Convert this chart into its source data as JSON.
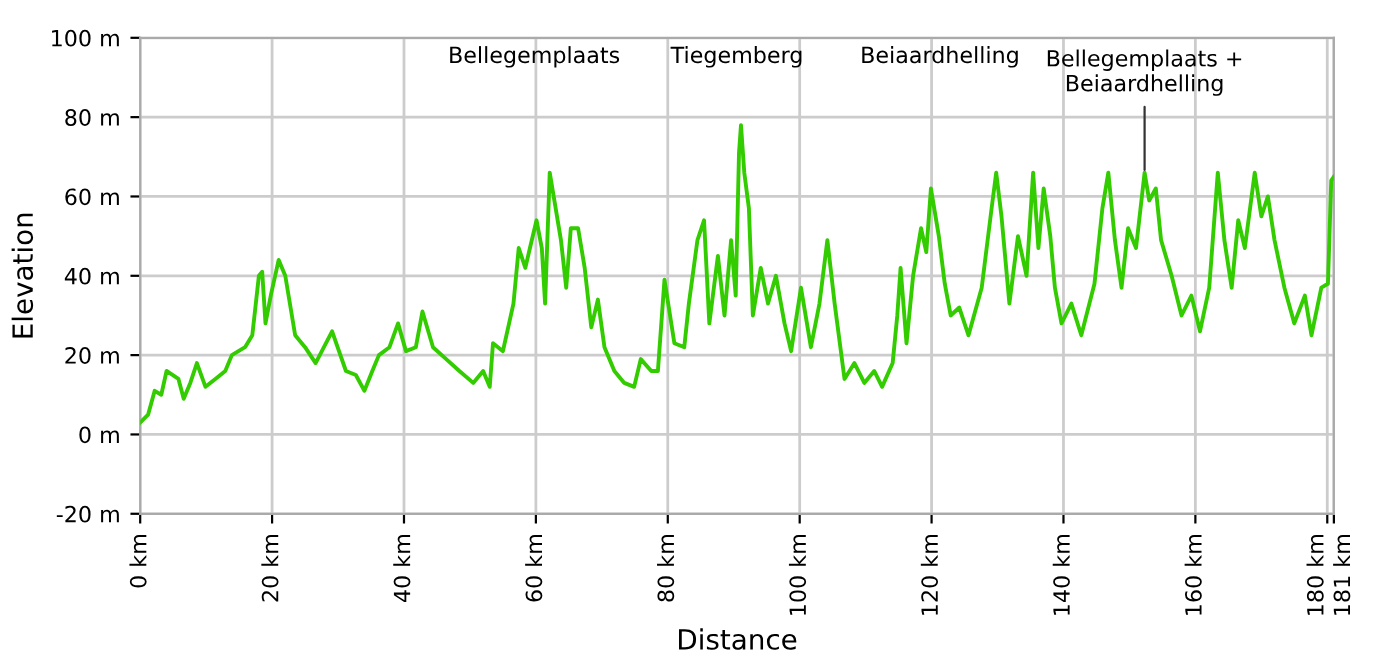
{
  "chart_data": {
    "type": "line",
    "xlabel": "Distance",
    "ylabel": "Elevation",
    "xlim": [
      0,
      181
    ],
    "ylim": [
      -20,
      100
    ],
    "xticks": [
      {
        "value": 0,
        "label": "0 km"
      },
      {
        "value": 20,
        "label": "20 km"
      },
      {
        "value": 40,
        "label": "40 km"
      },
      {
        "value": 60,
        "label": "60 km"
      },
      {
        "value": 80,
        "label": "80 km"
      },
      {
        "value": 100,
        "label": "100 km"
      },
      {
        "value": 120,
        "label": "120 km"
      },
      {
        "value": 140,
        "label": "140 km"
      },
      {
        "value": 160,
        "label": "160 km"
      },
      {
        "value": 180,
        "label": "180 km"
      },
      {
        "value": 181,
        "label": "181 km"
      }
    ],
    "yticks": [
      {
        "value": -20,
        "label": "-20 m"
      },
      {
        "value": 0,
        "label": "0 m"
      },
      {
        "value": 20,
        "label": "20 m"
      },
      {
        "value": 40,
        "label": "40 m"
      },
      {
        "value": 60,
        "label": "60 m"
      },
      {
        "value": 80,
        "label": "80 m"
      },
      {
        "value": 100,
        "label": "100 m"
      }
    ],
    "grid": true,
    "marker": "none",
    "line_style": "solid",
    "annotations": [
      "Bellegemplaats",
      "Tiegemberg",
      "Beiaardhelling",
      {
        "text": "Bellegemplaats +\nBeiaardhelling",
        "x": 152.3,
        "y": 66
      }
    ],
    "series": [
      {
        "color": "#33cc00",
        "x": [
          0,
          1.2,
          2.2,
          3.2,
          4.0,
          5.8,
          6.6,
          7.6,
          8.6,
          9.9,
          11.4,
          12.9,
          13.9,
          15.9,
          17,
          18,
          18.5,
          19,
          19.8,
          21,
          22,
          23.5,
          25,
          26.6,
          29.1,
          31.2,
          32.7,
          34,
          35.2,
          36.2,
          37.8,
          39.1,
          40.3,
          41.8,
          42.8,
          44.4,
          46.4,
          48.4,
          50.5,
          52,
          53,
          53.5,
          55,
          56.6,
          57.4,
          58.4,
          59.1,
          60.1,
          60.9,
          61.4,
          62.1,
          62.8,
          63.8,
          64.6,
          65.3,
          66.4,
          67.4,
          68.4,
          69.4,
          70.4,
          71.9,
          73.4,
          74.9,
          75.9,
          77.5,
          78.5,
          79.5,
          81,
          82.5,
          83.2,
          84.5,
          85.5,
          86.3,
          87.6,
          88.6,
          89.6,
          90.3,
          90.8,
          91.1,
          91.6,
          92.3,
          92.9,
          94.1,
          95.2,
          96.4,
          97.7,
          98.7,
          100.2,
          101.7,
          103,
          104.2,
          105.3,
          106.8,
          108.3,
          109.8,
          111.3,
          112.5,
          114.1,
          114.8,
          115.3,
          116.2,
          117.2,
          118.4,
          119.2,
          119.9,
          120.4,
          121.1,
          122,
          122.9,
          124.2,
          125.6,
          127.6,
          129.1,
          129.8,
          130.6,
          131.8,
          133.1,
          134.4,
          135.4,
          136.2,
          137,
          138,
          138.7,
          139.7,
          141.2,
          142.7,
          144.7,
          145.9,
          146.8,
          147.8,
          148.8,
          149.8,
          151,
          152.3,
          153,
          154,
          154.8,
          156.4,
          157.9,
          159.4,
          160.7,
          162.1,
          163.4,
          164.4,
          165.5,
          166.5,
          167.5,
          169,
          170,
          171,
          172,
          173.5,
          175,
          176.6,
          177.6,
          179.1,
          180.1,
          180.6,
          181
        ],
        "values": [
          3,
          5,
          11,
          10,
          16,
          14,
          9,
          13,
          18,
          12,
          14,
          16,
          20,
          22,
          25,
          40,
          41,
          28,
          35,
          44,
          40,
          25,
          22,
          18,
          26,
          16,
          15,
          11,
          16,
          20,
          22,
          28,
          21,
          22,
          31,
          22,
          19,
          16,
          13,
          16,
          12,
          23,
          21,
          33,
          47,
          42,
          47,
          54,
          47,
          33,
          66,
          59,
          49,
          37,
          52,
          52,
          42,
          27,
          34,
          22,
          16,
          13,
          12,
          19,
          16,
          16,
          39,
          23,
          22,
          33,
          49,
          54,
          28,
          45,
          30,
          49,
          35,
          71,
          78,
          66,
          57,
          30,
          42,
          33,
          40,
          28,
          21,
          37,
          22,
          33,
          49,
          33,
          14,
          18,
          13,
          16,
          12,
          18,
          30,
          42,
          23,
          40,
          52,
          46,
          62,
          57,
          50,
          38,
          30,
          32,
          25,
          37,
          57,
          66,
          55,
          33,
          50,
          40,
          66,
          47,
          62,
          50,
          37,
          28,
          33,
          25,
          38,
          57,
          66,
          49,
          37,
          52,
          47,
          66,
          59,
          62,
          49,
          40,
          30,
          35,
          26,
          37,
          66,
          49,
          37,
          54,
          47,
          66,
          55,
          60,
          49,
          37,
          28,
          35,
          25,
          37,
          38,
          64,
          65
        ]
      }
    ]
  }
}
